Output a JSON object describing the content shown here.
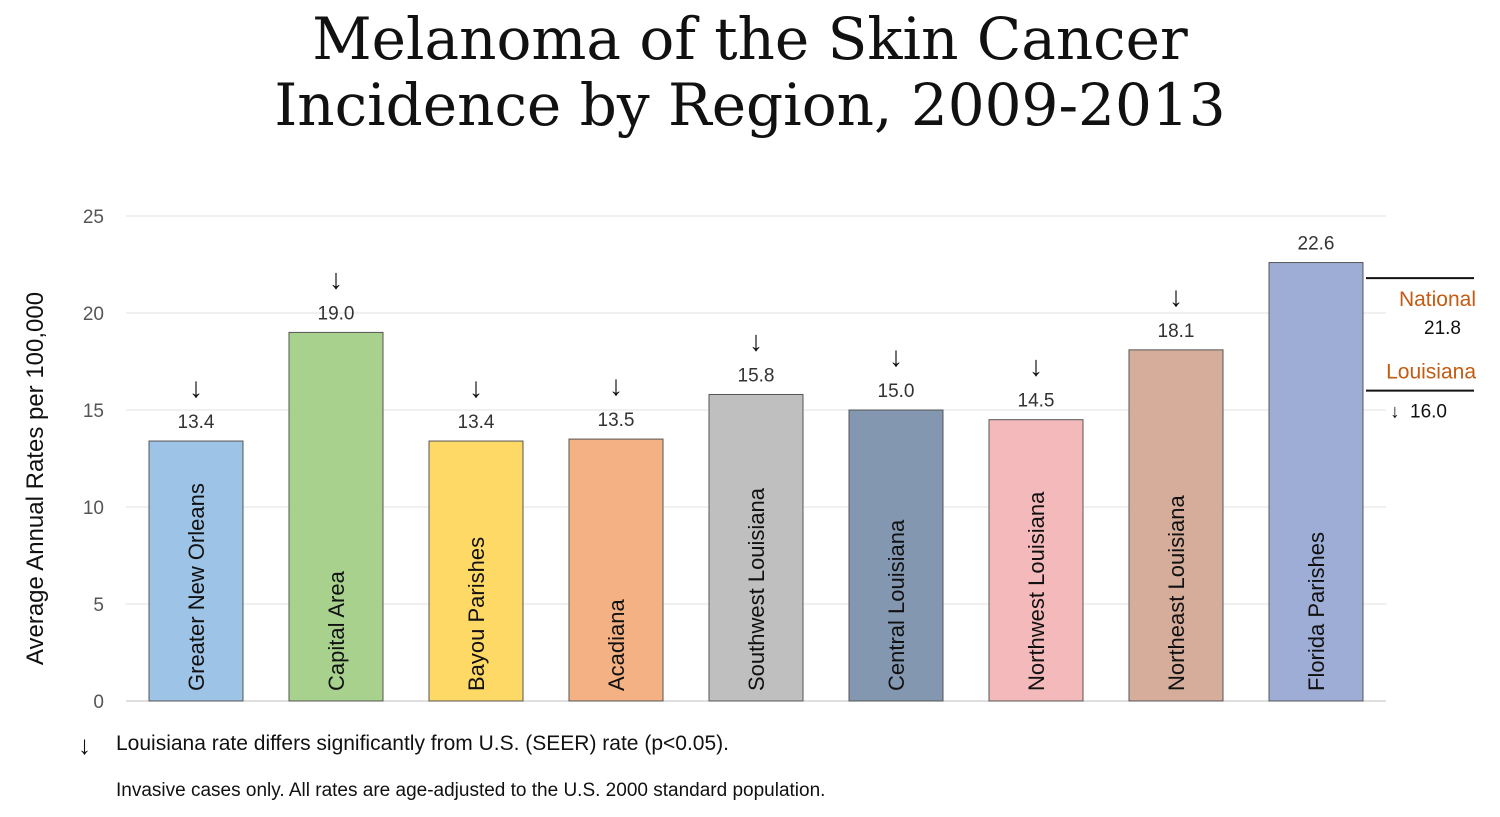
{
  "title_line1": "Melanoma of the Skin Cancer",
  "title_line2": "Incidence by Region, 2009-2013",
  "chart_data": {
    "type": "bar",
    "ylabel": "Average Annual Rates per 100,000",
    "ylim": [
      0,
      25
    ],
    "yticks": [
      "0",
      "5",
      "10",
      "15",
      "20",
      "25"
    ],
    "categories": [
      "Greater New Orleans",
      "Capital Area",
      "Bayou Parishes",
      "Acadiana",
      "Southwest Louisiana",
      "Central Louisiana",
      "Northwest Louisiana",
      "Northeast Louisiana",
      "Florida Parishes"
    ],
    "values": [
      13.4,
      19.0,
      13.4,
      13.5,
      15.8,
      15.0,
      14.5,
      18.1,
      22.6
    ],
    "value_labels": [
      "13.4",
      "19.0",
      "13.4",
      "13.5",
      "15.8",
      "15.0",
      "14.5",
      "18.1",
      "22.6"
    ],
    "significant": [
      true,
      true,
      true,
      true,
      true,
      true,
      true,
      true,
      false
    ],
    "colors": [
      "#9dc3e6",
      "#a9d18e",
      "#ffd966",
      "#f4b183",
      "#bfbfbf",
      "#8497b0",
      "#f4b9bb",
      "#d5ad9a",
      "#9dadd6"
    ],
    "reference_lines": [
      {
        "name": "National",
        "value": 21.8,
        "label": "21.8",
        "color": "#c55a11"
      },
      {
        "name": "Louisiana",
        "value": 16.0,
        "label": "16.0",
        "color": "#c55a11"
      }
    ]
  },
  "symbols": {
    "down_arrow": "↓"
  },
  "footnotes": {
    "significance": "Louisiana rate differs significantly from U.S. (SEER) rate (p<0.05).",
    "note": "Invasive cases only. All rates are age-adjusted to the U.S. 2000 standard population."
  }
}
